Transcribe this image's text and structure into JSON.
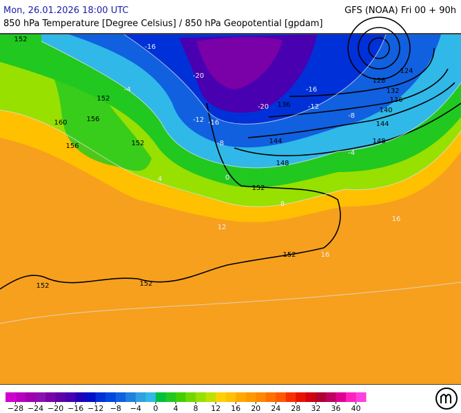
{
  "header": {
    "datetime": "Mon, 26.01.2026 18:00 UTC",
    "model": "GFS (NOAA) Fri 00 + 90h",
    "title": "850 hPa Temperature [Degree Celsius] / 850 hPa Geopotential [gpdam]"
  },
  "map": {
    "geopotential_labels": [
      "152",
      "152",
      "156",
      "156",
      "160",
      "152",
      "152",
      "152",
      "152",
      "152",
      "148",
      "144",
      "148",
      "136",
      "140",
      "144",
      "132",
      "128",
      "124",
      "136"
    ],
    "temperature_labels": [
      "-4",
      "-8",
      "-12",
      "-16",
      "-20",
      "-16",
      "-12",
      "-8",
      "-4",
      "0",
      "4",
      "8",
      "12",
      "16",
      "16",
      "-20",
      "-16"
    ]
  },
  "colorbar": {
    "range": [
      -30,
      42
    ],
    "colors": [
      "#d000d0",
      "#b800c0",
      "#a000b0",
      "#8c10b0",
      "#7a00a8",
      "#6000a8",
      "#4800b0",
      "#2000b8",
      "#0010c8",
      "#0030d8",
      "#0048e0",
      "#1060e0",
      "#2080e0",
      "#30a0e0",
      "#30b8e8",
      "#00c040",
      "#20c820",
      "#40d000",
      "#70d800",
      "#98e000",
      "#c0e000",
      "#ffd000",
      "#ffc000",
      "#ffa800",
      "#ff9800",
      "#ff8800",
      "#ff7000",
      "#ff5800",
      "#f83000",
      "#e81000",
      "#d00010",
      "#b00030",
      "#c00060",
      "#e00090",
      "#ff20c0",
      "#ff40e0"
    ],
    "ticks": [
      {
        "value": -28,
        "label": "−28"
      },
      {
        "value": -24,
        "label": "−24"
      },
      {
        "value": -20,
        "label": "−20"
      },
      {
        "value": -16,
        "label": "−16"
      },
      {
        "value": -12,
        "label": "−12"
      },
      {
        "value": -8,
        "label": "−8"
      },
      {
        "value": -4,
        "label": "−4"
      },
      0,
      4,
      8,
      12,
      16,
      20,
      24,
      28,
      32,
      36,
      40
    ]
  }
}
